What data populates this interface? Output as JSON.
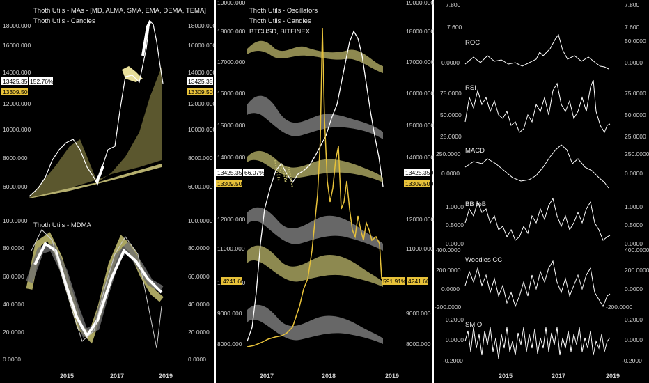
{
  "colors": {
    "background": "#000000",
    "line": "#ffffff",
    "yellow": "#e8c23a",
    "khaki": "#bdb76b",
    "grey": "#8a8a8a"
  },
  "panel1": {
    "top": {
      "title1": "Thoth Utils - MAs - [MD, ALMA, SMA, EMA, DEMA, TEMA]",
      "title2": "Thoth Utils - Candles",
      "ticks_left": [
        "18000.000",
        "16000.000",
        "14000.000",
        "12000.000",
        "10000.000",
        "8000.000",
        "6000.000"
      ],
      "ticks_right": [
        "18000.000",
        "16000.000",
        "14000.000",
        "12000.000",
        "10000.000",
        "8000.000",
        "6000.000"
      ],
      "tag_price": "13425.350",
      "tag_pct": "152.76%",
      "tag_close": "13309.500"
    },
    "bottom": {
      "title": "Thoth Utils - MDMA",
      "ticks_left": [
        "100.0000",
        "80.0000",
        "60.0000",
        "40.0000",
        "20.0000",
        "0.0000"
      ],
      "ticks_right": [
        "100.0000",
        "80.0000",
        "60.0000",
        "40.0000",
        "20.0000",
        "0.0000"
      ]
    },
    "xticks": [
      "2015",
      "2017",
      "2019"
    ]
  },
  "panel2": {
    "title1": "Thoth Utils - Oscillators",
    "title2": "Thoth Utils - Candles",
    "title3": "BTCUSD, BITFINEX",
    "ticks_left": [
      "19000.000",
      "18000.000",
      "17000.000",
      "16000.000",
      "15000.000",
      "14000.000",
      "12000.000",
      "11000.000",
      "10000.000",
      "9000.000",
      "8000.000"
    ],
    "ticks_right": [
      "19000.000",
      "18000.000",
      "17000.000",
      "16000.000",
      "15000.000",
      "14000.000",
      "12000.000",
      "11000.000",
      "10000.000",
      "9000.000",
      "8000.000"
    ],
    "tag_price": "13425.350",
    "tag_pct": "66.07%",
    "tag_close": "13309.500",
    "tag_osc_left": "4241.60",
    "tag_osc_pct": "591.91%",
    "tag_osc_right": "4241.60",
    "xticks": [
      "2017",
      "2018",
      "2019"
    ]
  },
  "panel3": {
    "top_tick_left": "7.800",
    "top_tick_right": "7.800",
    "roc": {
      "title": "ROC",
      "ticks_left": [
        "7.600",
        "0.0000"
      ],
      "ticks_right": [
        "7.600",
        "50.0000",
        "0.0000"
      ]
    },
    "rsi": {
      "title": "RSI",
      "ticks_left": [
        "75.0000",
        "50.0000",
        "25.0000"
      ],
      "ticks_right": [
        "75.0000",
        "50.0000",
        "25.0000"
      ]
    },
    "macd": {
      "title": "MACD",
      "ticks_left": [
        "250.0000",
        "0.0000"
      ],
      "ticks_right": [
        "250.0000",
        "0.0000"
      ]
    },
    "bb": {
      "title": "BB %B",
      "ticks_left": [
        "1.0000",
        "0.5000",
        "0.0000"
      ],
      "ticks_right": [
        "1.0000",
        "0.5000",
        "0.0000"
      ]
    },
    "cci": {
      "title": "Woodies CCI",
      "ticks_left": [
        "400.0000",
        "200.0000",
        "0.0000",
        "-200.0000"
      ],
      "ticks_right": [
        "400.0000",
        "200.0000",
        "0.0000",
        "-200.0000"
      ]
    },
    "smio": {
      "title": "SMIO",
      "ticks_left": [
        "0.2000",
        "0.0000",
        "-0.2000"
      ],
      "ticks_right": [
        "0.2000",
        "0.0000",
        "-0.2000"
      ]
    },
    "xticks": [
      "2015",
      "2017",
      "2019"
    ]
  },
  "chart_data": [
    {
      "type": "line",
      "name_ref": "panel1.top",
      "x": [
        2014.0,
        2015.0,
        2016.0,
        2016.5,
        2017.0,
        2017.5,
        2018.0,
        2018.3,
        2018.6
      ],
      "series": [
        {
          "values": [
            6600,
            6700,
            6300,
            8000,
            9000,
            11000,
            18000,
            13000,
            6500
          ]
        }
      ],
      "ylim": [
        6000,
        18500
      ]
    },
    {
      "type": "line",
      "name_ref": "panel1.bottom",
      "series": [
        {
          "values": [
            55,
            85,
            60,
            30,
            20,
            40,
            85,
            70,
            35,
            40
          ]
        }
      ],
      "ylim": [
        0,
        100
      ]
    },
    {
      "type": "line",
      "name_ref": "panel2",
      "x": [
        "2017",
        "2018",
        "2019"
      ],
      "ylim": [
        7800,
        19000
      ]
    },
    {
      "type": "line",
      "name_ref": "panel3",
      "series_names": [
        "ROC",
        "RSI",
        "MACD",
        "BB %B",
        "Woodies CCI",
        "SMIO"
      ]
    }
  ]
}
